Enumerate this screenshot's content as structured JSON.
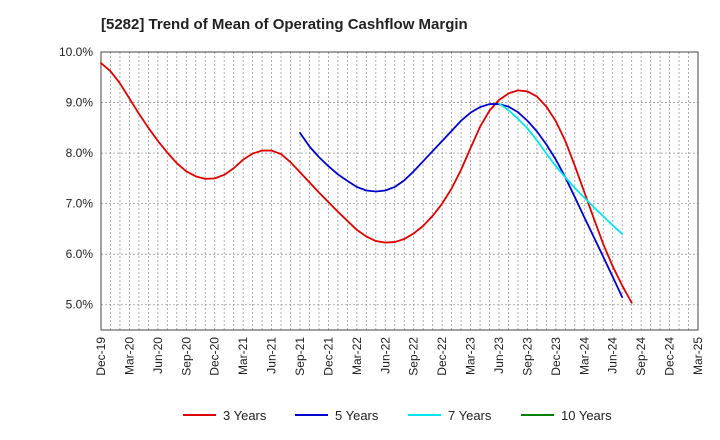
{
  "chart_data": {
    "type": "line",
    "title": "[5282]  Trend of Mean of Operating Cashflow Margin",
    "xlabel": "",
    "ylabel": "",
    "x_ticks": [
      "Dec-19",
      "Mar-20",
      "Jun-20",
      "Sep-20",
      "Dec-20",
      "Mar-21",
      "Jun-21",
      "Sep-21",
      "Dec-21",
      "Mar-22",
      "Jun-22",
      "Sep-22",
      "Dec-22",
      "Mar-23",
      "Jun-23",
      "Sep-23",
      "Dec-23",
      "Mar-24",
      "Jun-24",
      "Sep-24",
      "Dec-24",
      "Mar-25"
    ],
    "y_ticks": [
      5.0,
      6.0,
      7.0,
      8.0,
      9.0,
      10.0
    ],
    "y_tick_format": "percent_1dp",
    "ylim": [
      4.5,
      10.0
    ],
    "xlim": [
      "2019-12",
      "2025-03"
    ],
    "grid": true,
    "legend_position": "bottom",
    "series": [
      {
        "name": "3 Years",
        "color": "#dd0000",
        "points": [
          [
            "2019-12",
            9.78
          ],
          [
            "2020-01",
            9.62
          ],
          [
            "2020-02",
            9.38
          ],
          [
            "2020-03",
            9.08
          ],
          [
            "2020-04",
            8.78
          ],
          [
            "2020-05",
            8.5
          ],
          [
            "2020-06",
            8.24
          ],
          [
            "2020-07",
            8.01
          ],
          [
            "2020-08",
            7.8
          ],
          [
            "2020-09",
            7.64
          ],
          [
            "2020-10",
            7.54
          ],
          [
            "2020-11",
            7.49
          ],
          [
            "2020-12",
            7.5
          ],
          [
            "2021-01",
            7.57
          ],
          [
            "2021-02",
            7.7
          ],
          [
            "2021-03",
            7.87
          ],
          [
            "2021-04",
            7.99
          ],
          [
            "2021-05",
            8.05
          ],
          [
            "2021-06",
            8.05
          ],
          [
            "2021-07",
            7.98
          ],
          [
            "2021-08",
            7.82
          ],
          [
            "2021-09",
            7.62
          ],
          [
            "2021-10",
            7.42
          ],
          [
            "2021-11",
            7.22
          ],
          [
            "2021-12",
            7.03
          ],
          [
            "2022-01",
            6.84
          ],
          [
            "2022-02",
            6.66
          ],
          [
            "2022-03",
            6.48
          ],
          [
            "2022-04",
            6.35
          ],
          [
            "2022-05",
            6.26
          ],
          [
            "2022-06",
            6.23
          ],
          [
            "2022-07",
            6.24
          ],
          [
            "2022-08",
            6.3
          ],
          [
            "2022-09",
            6.41
          ],
          [
            "2022-10",
            6.56
          ],
          [
            "2022-11",
            6.76
          ],
          [
            "2022-12",
            7.0
          ],
          [
            "2023-01",
            7.3
          ],
          [
            "2023-02",
            7.67
          ],
          [
            "2023-03",
            8.1
          ],
          [
            "2023-04",
            8.52
          ],
          [
            "2023-05",
            8.84
          ],
          [
            "2023-06",
            9.05
          ],
          [
            "2023-07",
            9.18
          ],
          [
            "2023-08",
            9.24
          ],
          [
            "2023-09",
            9.22
          ],
          [
            "2023-10",
            9.12
          ],
          [
            "2023-11",
            8.92
          ],
          [
            "2023-12",
            8.63
          ],
          [
            "2024-01",
            8.24
          ],
          [
            "2024-02",
            7.75
          ],
          [
            "2024-03",
            7.23
          ],
          [
            "2024-04",
            6.71
          ],
          [
            "2024-05",
            6.2
          ],
          [
            "2024-06",
            5.76
          ],
          [
            "2024-07",
            5.38
          ],
          [
            "2024-08",
            5.04
          ]
        ]
      },
      {
        "name": "5 Years",
        "color": "#0000cc",
        "points": [
          [
            "2021-09",
            8.4
          ],
          [
            "2021-10",
            8.13
          ],
          [
            "2021-11",
            7.92
          ],
          [
            "2021-12",
            7.74
          ],
          [
            "2022-01",
            7.58
          ],
          [
            "2022-02",
            7.45
          ],
          [
            "2022-03",
            7.33
          ],
          [
            "2022-04",
            7.26
          ],
          [
            "2022-05",
            7.24
          ],
          [
            "2022-06",
            7.26
          ],
          [
            "2022-07",
            7.33
          ],
          [
            "2022-08",
            7.46
          ],
          [
            "2022-09",
            7.64
          ],
          [
            "2022-10",
            7.84
          ],
          [
            "2022-11",
            8.04
          ],
          [
            "2022-12",
            8.24
          ],
          [
            "2023-01",
            8.44
          ],
          [
            "2023-02",
            8.64
          ],
          [
            "2023-03",
            8.8
          ],
          [
            "2023-04",
            8.91
          ],
          [
            "2023-05",
            8.97
          ],
          [
            "2023-06",
            8.97
          ],
          [
            "2023-07",
            8.92
          ],
          [
            "2023-08",
            8.81
          ],
          [
            "2023-09",
            8.64
          ],
          [
            "2023-10",
            8.43
          ],
          [
            "2023-11",
            8.17
          ],
          [
            "2023-12",
            7.87
          ],
          [
            "2024-01",
            7.52
          ],
          [
            "2024-02",
            7.13
          ],
          [
            "2024-03",
            6.73
          ],
          [
            "2024-04",
            6.34
          ],
          [
            "2024-05",
            5.95
          ],
          [
            "2024-06",
            5.55
          ],
          [
            "2024-07",
            5.15
          ]
        ]
      },
      {
        "name": "7 Years",
        "color": "#00e5ee",
        "points": [
          [
            "2023-06",
            8.98
          ],
          [
            "2023-07",
            8.85
          ],
          [
            "2023-08",
            8.68
          ],
          [
            "2023-09",
            8.49
          ],
          [
            "2023-10",
            8.25
          ],
          [
            "2023-11",
            7.99
          ],
          [
            "2023-12",
            7.74
          ],
          [
            "2024-01",
            7.52
          ],
          [
            "2024-02",
            7.31
          ],
          [
            "2024-03",
            7.12
          ],
          [
            "2024-04",
            6.93
          ],
          [
            "2024-05",
            6.75
          ],
          [
            "2024-06",
            6.57
          ],
          [
            "2024-07",
            6.4
          ]
        ]
      },
      {
        "name": "10 Years",
        "color": "#008000",
        "points": []
      }
    ]
  }
}
